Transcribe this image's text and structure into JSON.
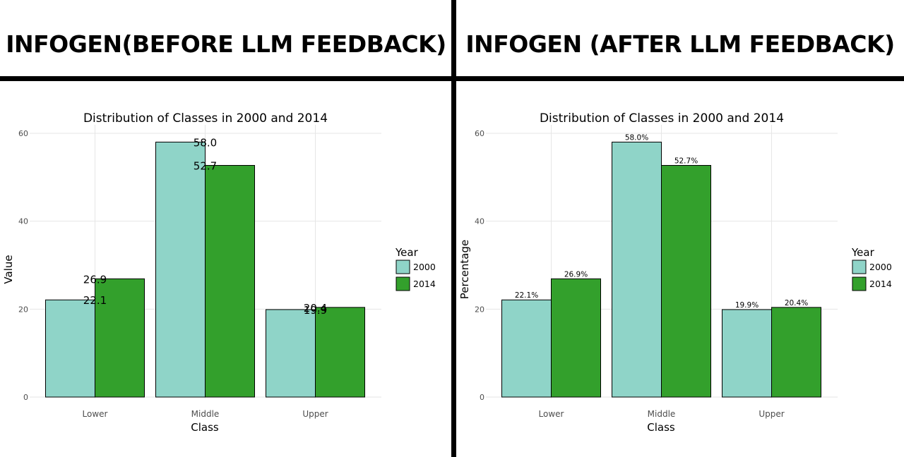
{
  "panels": [
    {
      "title": "INFOGEN(BEFORE LLM FEEDBACK)"
    },
    {
      "title": "INFOGEN (AFTER LLM FEEDBACK)"
    }
  ],
  "colors": {
    "y2000": "#8fd4c8",
    "y2014": "#33a02c",
    "grid": "#e6e6e6",
    "stroke": "#000000"
  },
  "chart_data": [
    {
      "type": "bar",
      "title": "Distribution of Classes in 2000 and 2014",
      "xlabel": "Class",
      "ylabel": "Value",
      "categories": [
        "Lower",
        "Middle",
        "Upper"
      ],
      "series": [
        {
          "name": "2000",
          "values": [
            22.1,
            58.0,
            19.9
          ]
        },
        {
          "name": "2014",
          "values": [
            26.9,
            52.7,
            20.4
          ]
        }
      ],
      "labels": [
        [
          "22.1",
          "58.0",
          "19.9"
        ],
        [
          "26.9",
          "52.7",
          "20.4"
        ]
      ],
      "label_style": "overlap",
      "ylim": [
        0,
        60
      ],
      "yticks": [
        0,
        20,
        40,
        60
      ],
      "legend_title": "Year",
      "legend_position": "right"
    },
    {
      "type": "bar",
      "title": "Distribution of Classes in 2000 and 2014",
      "xlabel": "Class",
      "ylabel": "Percentage",
      "categories": [
        "Lower",
        "Middle",
        "Upper"
      ],
      "series": [
        {
          "name": "2000",
          "values": [
            22.1,
            58.0,
            19.9
          ]
        },
        {
          "name": "2014",
          "values": [
            26.9,
            52.7,
            20.4
          ]
        }
      ],
      "labels": [
        [
          "22.1%",
          "58.0%",
          "19.9%"
        ],
        [
          "26.9%",
          "52.7%",
          "20.4%"
        ]
      ],
      "label_style": "above",
      "ylim": [
        0,
        60
      ],
      "yticks": [
        0,
        20,
        40,
        60
      ],
      "legend_title": "Year",
      "legend_position": "right"
    }
  ]
}
